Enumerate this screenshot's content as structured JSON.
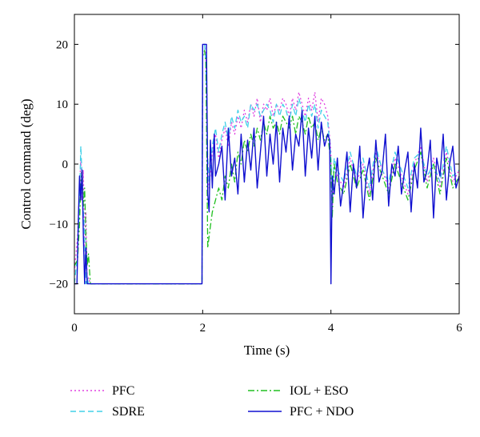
{
  "chart_data": {
    "type": "line",
    "xlabel": "Time (s)",
    "ylabel": "Control command (deg)",
    "xlim": [
      0,
      6
    ],
    "ylim": [
      -25,
      25
    ],
    "xticks": [
      0,
      2,
      4,
      6
    ],
    "yticks": [
      -20,
      -10,
      0,
      10,
      20
    ],
    "grid": false,
    "legend_position": "bottom",
    "series": [
      {
        "name": "PFC",
        "color": "#e040e0",
        "dash": "dotted",
        "x": [
          0,
          0.05,
          0.08,
          0.1,
          0.12,
          0.14,
          0.16,
          0.18,
          0.2,
          0.22,
          0.25,
          0.3,
          1.0,
          1.99,
          2.0,
          2.03,
          2.05,
          2.08,
          2.1,
          2.15,
          2.2,
          2.25,
          2.3,
          2.35,
          2.4,
          2.45,
          2.5,
          2.55,
          2.6,
          2.65,
          2.7,
          2.75,
          2.8,
          2.85,
          2.9,
          2.95,
          3.0,
          3.05,
          3.1,
          3.15,
          3.2,
          3.25,
          3.3,
          3.35,
          3.4,
          3.45,
          3.5,
          3.55,
          3.6,
          3.65,
          3.7,
          3.75,
          3.8,
          3.85,
          3.9,
          3.95,
          4.0,
          4.02,
          4.05,
          4.1,
          4.2,
          4.3,
          4.4,
          4.5,
          4.6,
          4.7,
          4.8,
          4.9,
          5.0,
          5.1,
          5.2,
          5.3,
          5.4,
          5.5,
          5.6,
          5.7,
          5.8,
          5.9,
          6.0
        ],
        "y": [
          -18,
          -12,
          -4,
          1,
          -6,
          -1,
          -14,
          -8,
          -20,
          -19,
          -20,
          -20,
          -20,
          -20,
          20,
          20,
          18,
          0,
          -4,
          2,
          5,
          1,
          4,
          6,
          3,
          7,
          5,
          8,
          6,
          9,
          7,
          10,
          8,
          11,
          7,
          10,
          9,
          11,
          8,
          10,
          9,
          11,
          10,
          8,
          11,
          9,
          12,
          10,
          8,
          11,
          9,
          12,
          7,
          11,
          10,
          8,
          2,
          -8,
          0,
          -2,
          -4,
          1,
          -3,
          0,
          -5,
          2,
          -1,
          -4,
          1,
          -2,
          -5,
          0,
          3,
          -3,
          1,
          -4,
          2,
          -3,
          -1
        ]
      },
      {
        "name": "SDRE",
        "color": "#40d0e8",
        "dash": "dashed",
        "x": [
          0,
          0.05,
          0.08,
          0.1,
          0.12,
          0.14,
          0.16,
          0.18,
          0.2,
          0.22,
          0.25,
          0.3,
          1.0,
          1.99,
          2.0,
          2.03,
          2.05,
          2.08,
          2.1,
          2.15,
          2.2,
          2.25,
          2.3,
          2.35,
          2.4,
          2.45,
          2.5,
          2.55,
          2.6,
          2.65,
          2.7,
          2.75,
          2.8,
          2.85,
          2.9,
          2.95,
          3.0,
          3.05,
          3.1,
          3.15,
          3.2,
          3.25,
          3.3,
          3.35,
          3.4,
          3.45,
          3.5,
          3.55,
          3.6,
          3.65,
          3.7,
          3.75,
          3.8,
          3.85,
          3.9,
          3.95,
          4.0,
          4.02,
          4.05,
          4.1,
          4.2,
          4.3,
          4.4,
          4.5,
          4.6,
          4.7,
          4.8,
          4.9,
          5.0,
          5.1,
          5.2,
          5.3,
          5.4,
          5.5,
          5.6,
          5.7,
          5.8,
          5.9,
          6.0
        ],
        "y": [
          -20,
          -15,
          -6,
          3,
          -2,
          -8,
          -12,
          -20,
          -19,
          -20,
          -20,
          -20,
          -20,
          -20,
          20,
          20,
          17,
          1,
          -3,
          3,
          6,
          2,
          5,
          7,
          4,
          8,
          6,
          9,
          7,
          8,
          6,
          10,
          9,
          10,
          8,
          9,
          10,
          9,
          7,
          10,
          8,
          10,
          9,
          7,
          10,
          8,
          11,
          9,
          7,
          10,
          8,
          10,
          6,
          9,
          8,
          7,
          1,
          -6,
          1,
          -1,
          -3,
          2,
          -2,
          1,
          -4,
          3,
          -1,
          -3,
          2,
          -1,
          -4,
          1,
          2,
          -2,
          0,
          -3,
          3,
          -2,
          -1
        ]
      },
      {
        "name": "IOL + ESO",
        "color": "#20c020",
        "dash": "dashdot",
        "x": [
          0,
          0.05,
          0.08,
          0.1,
          0.12,
          0.14,
          0.16,
          0.18,
          0.2,
          0.22,
          0.25,
          0.3,
          1.0,
          1.99,
          2.0,
          2.03,
          2.05,
          2.08,
          2.1,
          2.15,
          2.2,
          2.25,
          2.3,
          2.35,
          2.4,
          2.45,
          2.5,
          2.55,
          2.6,
          2.65,
          2.7,
          2.75,
          2.8,
          2.85,
          2.9,
          2.95,
          3.0,
          3.05,
          3.1,
          3.15,
          3.2,
          3.25,
          3.3,
          3.35,
          3.4,
          3.45,
          3.5,
          3.55,
          3.6,
          3.65,
          3.7,
          3.75,
          3.8,
          3.85,
          3.9,
          3.95,
          4.0,
          4.02,
          4.05,
          4.1,
          4.2,
          4.3,
          4.4,
          4.5,
          4.6,
          4.7,
          4.8,
          4.9,
          5.0,
          5.1,
          5.2,
          5.3,
          5.4,
          5.5,
          5.6,
          5.7,
          5.8,
          5.9,
          6.0
        ],
        "y": [
          -17,
          -16,
          -10,
          -3,
          -1,
          -7,
          -4,
          -12,
          -17,
          -15,
          -20,
          -20,
          -20,
          -20,
          18,
          19,
          17,
          -14,
          -12,
          -8,
          -6,
          -4,
          -6,
          -2,
          -4,
          0,
          -3,
          2,
          0,
          4,
          2,
          5,
          3,
          6,
          4,
          7,
          5,
          8,
          6,
          7,
          5,
          8,
          7,
          6,
          8,
          5,
          8,
          7,
          5,
          8,
          6,
          7,
          4,
          6,
          4,
          5,
          0,
          -9,
          0,
          -3,
          -5,
          0,
          -4,
          -1,
          -6,
          1,
          -2,
          -5,
          0,
          -3,
          -6,
          -1,
          2,
          -4,
          0,
          -5,
          1,
          -4,
          -2
        ]
      },
      {
        "name": "PFC + NDO",
        "color": "#1010d0",
        "dash": "solid",
        "x": [
          0,
          0.04,
          0.06,
          0.08,
          0.1,
          0.12,
          0.14,
          0.16,
          0.18,
          0.2,
          0.25,
          1.0,
          1.99,
          2.0,
          2.06,
          2.08,
          2.1,
          2.12,
          2.15,
          2.18,
          2.2,
          2.25,
          2.3,
          2.35,
          2.4,
          2.45,
          2.5,
          2.55,
          2.6,
          2.65,
          2.7,
          2.75,
          2.8,
          2.85,
          2.9,
          2.95,
          3.0,
          3.05,
          3.1,
          3.15,
          3.2,
          3.25,
          3.3,
          3.35,
          3.4,
          3.45,
          3.5,
          3.55,
          3.6,
          3.65,
          3.7,
          3.75,
          3.8,
          3.85,
          3.9,
          3.95,
          3.98,
          4.0,
          4.02,
          4.05,
          4.1,
          4.15,
          4.2,
          4.25,
          4.3,
          4.35,
          4.4,
          4.45,
          4.5,
          4.55,
          4.6,
          4.65,
          4.7,
          4.75,
          4.8,
          4.85,
          4.9,
          4.95,
          5.0,
          5.05,
          5.1,
          5.15,
          5.2,
          5.25,
          5.3,
          5.35,
          5.4,
          5.45,
          5.5,
          5.55,
          5.6,
          5.65,
          5.7,
          5.75,
          5.8,
          5.85,
          5.9,
          5.95,
          6.0
        ],
        "y": [
          -20,
          -20,
          -10,
          -2,
          -6,
          -1,
          -12,
          -20,
          -14,
          -20,
          -20,
          -20,
          -20,
          20,
          20,
          -5,
          -8,
          4,
          -4,
          5,
          -2,
          0,
          3,
          -6,
          6,
          -2,
          1,
          -5,
          5,
          -3,
          4,
          -1,
          6,
          -4,
          2,
          8,
          -2,
          5,
          0,
          7,
          -3,
          6,
          2,
          8,
          -1,
          5,
          3,
          9,
          -2,
          6,
          1,
          8,
          -1,
          7,
          3,
          5,
          4,
          -20,
          -2,
          -5,
          1,
          -7,
          -3,
          2,
          -8,
          0,
          -4,
          3,
          -9,
          -2,
          1,
          -6,
          4,
          -3,
          -1,
          5,
          -7,
          0,
          -2,
          3,
          -5,
          -1,
          2,
          -8,
          0,
          -4,
          6,
          -3,
          -1,
          4,
          -9,
          1,
          -2,
          5,
          -6,
          0,
          3,
          -4,
          -2
        ]
      }
    ]
  }
}
